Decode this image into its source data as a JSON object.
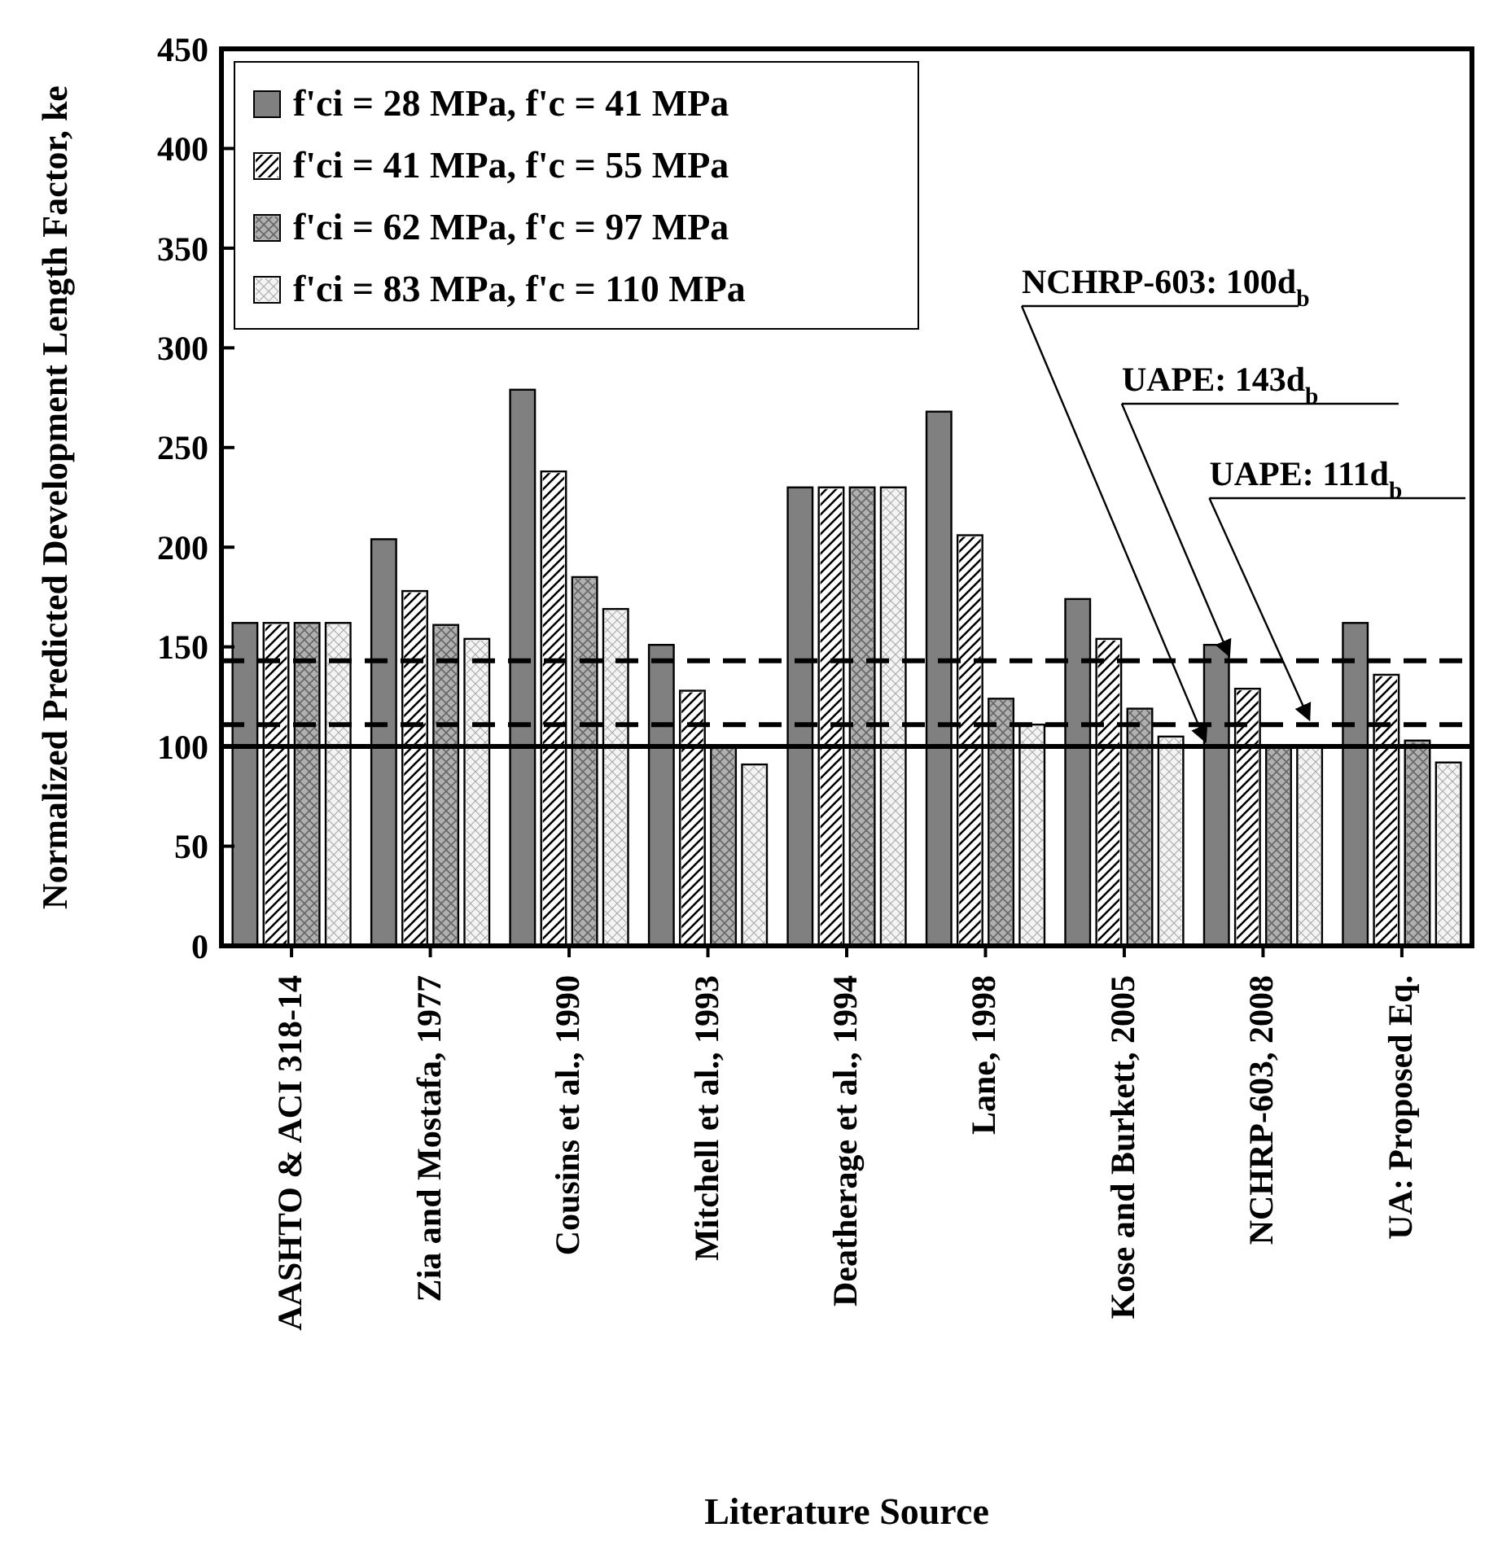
{
  "chart_data": {
    "type": "bar",
    "xlabel": "Literature Source",
    "ylabel": "Normalized Predicted Development Length Factor, ke",
    "categories": [
      "AASHTO & ACI 318-14",
      "Zia and Mostafa, 1977",
      "Cousins et al., 1990",
      "Mitchell et al., 1993",
      "Deatherage et al., 1994",
      "Lane, 1998",
      "Kose and Burkett, 2005",
      "NCHRP-603, 2008",
      "UA: Proposed Eq."
    ],
    "series": [
      {
        "name": "f'ci = 28 MPa, f'c = 41 MPa",
        "color": "#808080",
        "values": [
          162,
          204,
          279,
          151,
          230,
          268,
          174,
          151,
          162
        ]
      },
      {
        "name": "f'ci = 41 MPa, f'c = 55 MPa",
        "color": "#ffffff",
        "values": [
          162,
          178,
          238,
          128,
          230,
          206,
          154,
          129,
          136
        ]
      },
      {
        "name": "f'ci = 62 MPa, f'c = 97 MPa",
        "color": "#b0b0b0",
        "values": [
          162,
          161,
          185,
          100,
          230,
          124,
          119,
          100,
          103
        ]
      },
      {
        "name": "f'ci = 83 MPa, f'c = 110 MPa",
        "color": "#f4f4f4",
        "values": [
          162,
          154,
          169,
          91,
          230,
          111,
          105,
          100,
          92
        ]
      }
    ],
    "ylim": [
      0,
      450
    ],
    "yticks": [
      0,
      50,
      100,
      150,
      200,
      250,
      300,
      350,
      400,
      450
    ],
    "grid": false,
    "legend": "top left",
    "ref_lines": [
      {
        "axis": "y",
        "value": 100,
        "label": "NCHRP-603: 100d$_{b}$",
        "line_style": "solid"
      },
      {
        "axis": "y",
        "value": 143,
        "label": "UAPE: 143d$_{b}$",
        "line_style": "dashed"
      },
      {
        "axis": "y",
        "value": 111,
        "label": "UAPE: 111d$_{b}$",
        "line_style": "dashed"
      }
    ]
  }
}
